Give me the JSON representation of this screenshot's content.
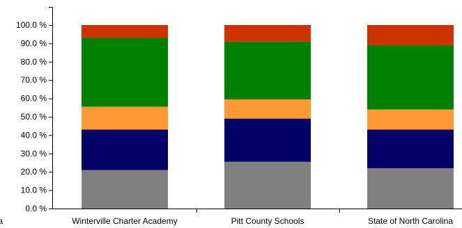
{
  "chart_data": {
    "type": "bar",
    "stacked": true,
    "title": "",
    "xlabel": "",
    "ylabel": "",
    "ylim": [
      0,
      100
    ],
    "y_ticks": [
      "0.0 %",
      "10.0 %",
      "20.0 %",
      "30.0 %",
      "40.0 %",
      "50.0 %",
      "60.0 %",
      "70.0 %",
      "80.0 %",
      "90.0 %",
      "100.0 %"
    ],
    "grid": false,
    "legend": "none",
    "left_cut_label": "a",
    "categories": [
      "Winterville Charter Academy",
      "Pitt County Schools",
      "State of North Carolina"
    ],
    "series": [
      {
        "color": "#808080",
        "values": [
          21.0,
          25.5,
          22.0
        ]
      },
      {
        "color": "#000066",
        "values": [
          22.0,
          23.5,
          21.0
        ]
      },
      {
        "color": "#ff9933",
        "values": [
          12.5,
          10.5,
          11.0
        ]
      },
      {
        "color": "#008000",
        "values": [
          37.5,
          31.5,
          35.0
        ]
      },
      {
        "color": "#cc3300",
        "values": [
          7.0,
          9.0,
          11.0
        ]
      }
    ]
  }
}
